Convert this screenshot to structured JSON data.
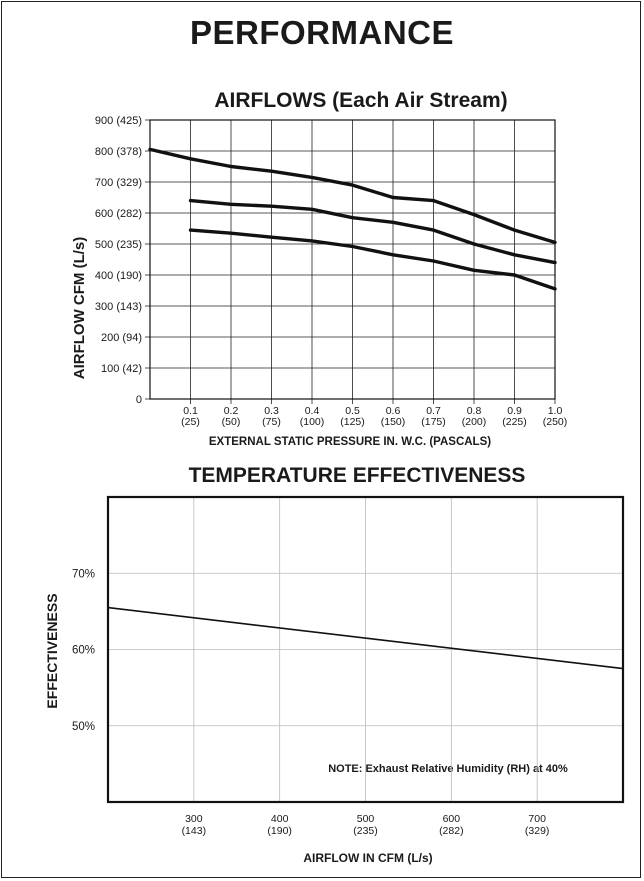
{
  "page": {
    "title": "PERFORMANCE"
  },
  "chart_data": [
    {
      "type": "line",
      "title": "AIRFLOWS (Each Air Stream)",
      "xlabel": "EXTERNAL STATIC PRESSURE IN. W.C. (PASCALS)",
      "ylabel": "AIRFLOW CFM (L/s)",
      "xlim": [
        0,
        1.0
      ],
      "ylim": [
        0,
        900
      ],
      "grid": true,
      "x_ticks": [
        {
          "value": 0.1,
          "label": "0.1",
          "sub": "(25)"
        },
        {
          "value": 0.2,
          "label": "0.2",
          "sub": "(50)"
        },
        {
          "value": 0.3,
          "label": "0.3",
          "sub": "(75)"
        },
        {
          "value": 0.4,
          "label": "0.4",
          "sub": "(100)"
        },
        {
          "value": 0.5,
          "label": "0.5",
          "sub": "(125)"
        },
        {
          "value": 0.6,
          "label": "0.6",
          "sub": "(150)"
        },
        {
          "value": 0.7,
          "label": "0.7",
          "sub": "(175)"
        },
        {
          "value": 0.8,
          "label": "0.8",
          "sub": "(200)"
        },
        {
          "value": 0.9,
          "label": "0.9",
          "sub": "(225)"
        },
        {
          "value": 1.0,
          "label": "1.0",
          "sub": "(250)"
        }
      ],
      "y_ticks": [
        {
          "value": 0,
          "label": "0"
        },
        {
          "value": 100,
          "label": "100 (42)"
        },
        {
          "value": 200,
          "label": "200 (94)"
        },
        {
          "value": 300,
          "label": "300 (143)"
        },
        {
          "value": 400,
          "label": "400 (190)"
        },
        {
          "value": 500,
          "label": "500 (235)"
        },
        {
          "value": 600,
          "label": "600 (282)"
        },
        {
          "value": 700,
          "label": "700 (329)"
        },
        {
          "value": 800,
          "label": "800 (378)"
        },
        {
          "value": 900,
          "label": "900 (425)"
        }
      ],
      "series": [
        {
          "x": [
            0,
            0.1,
            0.2,
            0.3,
            0.4,
            0.5,
            0.6,
            0.7,
            0.8,
            0.9,
            1.0
          ],
          "y": [
            805,
            775,
            750,
            735,
            715,
            690,
            650,
            640,
            595,
            545,
            505
          ]
        },
        {
          "x": [
            0.1,
            0.2,
            0.3,
            0.4,
            0.5,
            0.6,
            0.7,
            0.8,
            0.9,
            1.0
          ],
          "y": [
            640,
            628,
            622,
            612,
            585,
            570,
            545,
            500,
            465,
            440
          ]
        },
        {
          "x": [
            0.1,
            0.2,
            0.3,
            0.4,
            0.5,
            0.6,
            0.7,
            0.8,
            0.9,
            1.0
          ],
          "y": [
            545,
            535,
            522,
            510,
            492,
            465,
            445,
            415,
            400,
            355
          ]
        }
      ]
    },
    {
      "type": "line",
      "title": "TEMPERATURE EFFECTIVENESS",
      "xlabel": "AIRFLOW IN CFM (L/s)",
      "ylabel": "EFFECTIVENESS",
      "xlim": [
        200,
        800
      ],
      "ylim": [
        40,
        80
      ],
      "grid": true,
      "x_ticks": [
        {
          "value": 300,
          "label": "300",
          "sub": "(143)"
        },
        {
          "value": 400,
          "label": "400",
          "sub": "(190)"
        },
        {
          "value": 500,
          "label": "500",
          "sub": "(235)"
        },
        {
          "value": 600,
          "label": "600",
          "sub": "(282)"
        },
        {
          "value": 700,
          "label": "700",
          "sub": "(329)"
        }
      ],
      "y_ticks": [
        {
          "value": 50,
          "label": "50%"
        },
        {
          "value": 60,
          "label": "60%"
        },
        {
          "value": 70,
          "label": "70%"
        }
      ],
      "series": [
        {
          "x": [
            200,
            800
          ],
          "y": [
            65.5,
            57.5
          ]
        }
      ],
      "annotations": [
        "NOTE: Exhaust Relative Humidity (RH) at 40%"
      ]
    }
  ]
}
